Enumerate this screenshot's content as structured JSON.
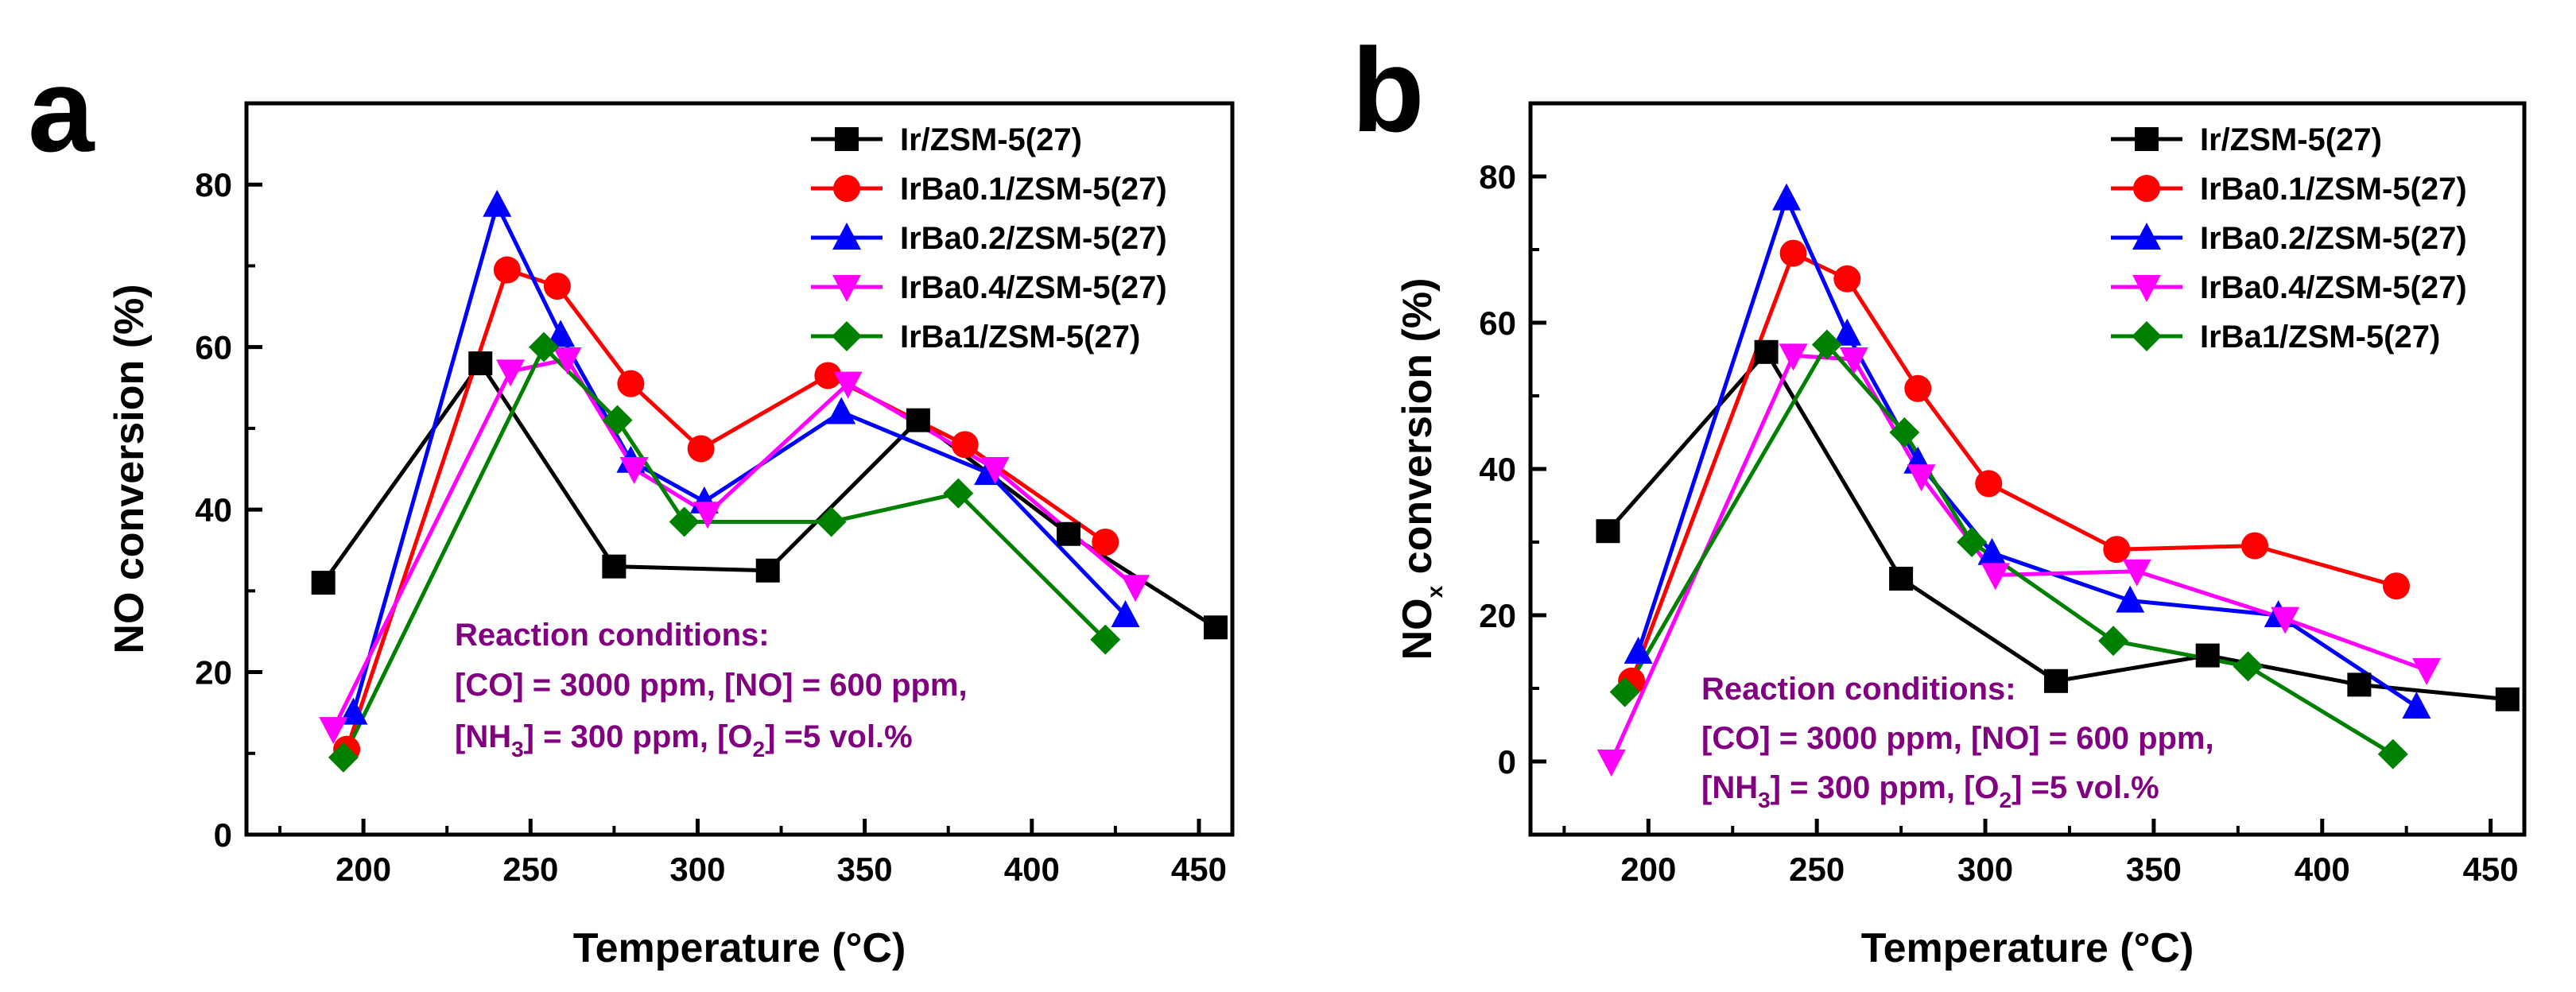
{
  "colors": {
    "Ir/ZSM-5(27)": "#000000",
    "IrBa0.1/ZSM-5(27)": "#ff0000",
    "IrBa0.2/ZSM-5(27)": "#0000ff",
    "IrBa0.4/ZSM-5(27)": "#ff00ff",
    "IrBa1/ZSM-5(27)": "#008000",
    "conditions": "#800080"
  },
  "chart_data": [
    {
      "type": "line",
      "panel_label": "a",
      "xlabel": "Temperature (°C)",
      "ylabel_main": "NO conversion (%)",
      "ylabel_sub": "",
      "ylabel_rest": "",
      "xlim": [
        165,
        460
      ],
      "ylim": [
        0,
        90
      ],
      "xticks": [
        200,
        250,
        300,
        350,
        400,
        450
      ],
      "yticks": [
        0,
        20,
        40,
        60,
        80
      ],
      "legend_position": "top-right",
      "series": [
        {
          "name": "Ir/ZSM-5(27)",
          "marker": "square",
          "x": [
            188,
            235,
            275,
            321,
            366,
            411,
            455
          ],
          "y": [
            31,
            58,
            33,
            32.5,
            51,
            37,
            25.5
          ]
        },
        {
          "name": "IrBa0.1/ZSM-5(27)",
          "marker": "circle",
          "x": [
            195,
            243,
            258,
            280,
            301,
            339,
            380,
            422
          ],
          "y": [
            10.5,
            69.5,
            67.5,
            55.5,
            47.5,
            56.5,
            48,
            36
          ]
        },
        {
          "name": "IrBa0.2/ZSM-5(27)",
          "marker": "triangle-up",
          "x": [
            197,
            240,
            259,
            280,
            302,
            343,
            387,
            428
          ],
          "y": [
            15,
            77.5,
            61.5,
            46,
            41,
            52,
            44.5,
            27
          ]
        },
        {
          "name": "IrBa0.4/ZSM-5(27)",
          "marker": "triangle-down",
          "x": [
            191,
            244,
            261,
            281,
            303,
            345,
            389,
            431
          ],
          "y": [
            13,
            57,
            58.5,
            45,
            39.5,
            55.5,
            45,
            30.5
          ]
        },
        {
          "name": "IrBa1/ZSM-5(27)",
          "marker": "diamond",
          "x": [
            194,
            254,
            276,
            296,
            340,
            378,
            422
          ],
          "y": [
            9.5,
            60,
            51,
            38.5,
            38.5,
            42,
            24
          ]
        }
      ],
      "annotation": {
        "line1": "Reaction conditions:",
        "line2": "[CO] = 3000 ppm, [NO] = 600 ppm,",
        "line3_a": "[NH",
        "line3_sub1": "3",
        "line3_b": "] = 300 ppm, [O",
        "line3_sub2": "2",
        "line3_c": "] =5 vol.%"
      }
    },
    {
      "type": "line",
      "panel_label": "b",
      "xlabel": "Temperature (°C)",
      "ylabel_main": "NO",
      "ylabel_sub": "x",
      "ylabel_rest": " conversion (%)",
      "xlim": [
        165,
        460
      ],
      "ylim": [
        -10,
        90
      ],
      "xticks": [
        200,
        250,
        300,
        350,
        400,
        450
      ],
      "yticks": [
        0,
        20,
        40,
        60,
        80
      ],
      "legend_position": "top-right",
      "series": [
        {
          "name": "Ir/ZSM-5(27)",
          "marker": "square",
          "x": [
            188,
            235,
            275,
            321,
            366,
            411,
            455
          ],
          "y": [
            31.5,
            56,
            25,
            11,
            14.5,
            10.5,
            8.5
          ]
        },
        {
          "name": "IrBa0.1/ZSM-5(27)",
          "marker": "circle",
          "x": [
            195,
            243,
            259,
            280,
            301,
            339,
            380,
            422
          ],
          "y": [
            11,
            69.5,
            66,
            51,
            38,
            29,
            29.5,
            24
          ]
        },
        {
          "name": "IrBa0.2/ZSM-5(27)",
          "marker": "triangle-up",
          "x": [
            197,
            241,
            259,
            280,
            302,
            343,
            387,
            428
          ],
          "y": [
            15,
            77,
            58.5,
            41,
            28.5,
            22,
            20,
            7.5
          ]
        },
        {
          "name": "IrBa0.4/ZSM-5(27)",
          "marker": "triangle-down",
          "x": [
            189,
            243,
            261,
            281,
            303,
            345,
            389,
            431
          ],
          "y": [
            0,
            55.5,
            55,
            39,
            25.5,
            26,
            19.5,
            12.5
          ]
        },
        {
          "name": "IrBa1/ZSM-5(27)",
          "marker": "diamond",
          "x": [
            193,
            253,
            276,
            296,
            338,
            378,
            421
          ],
          "y": [
            9.5,
            57,
            45,
            30,
            16.5,
            13,
            1
          ]
        }
      ],
      "annotation": {
        "line1": "Reaction conditions:",
        "line2": "[CO] = 3000 ppm, [NO] = 600 ppm,",
        "line3_a": "[NH",
        "line3_sub1": "3",
        "line3_b": "] = 300 ppm, [O",
        "line3_sub2": "2",
        "line3_c": "] =5 vol.%"
      }
    }
  ]
}
